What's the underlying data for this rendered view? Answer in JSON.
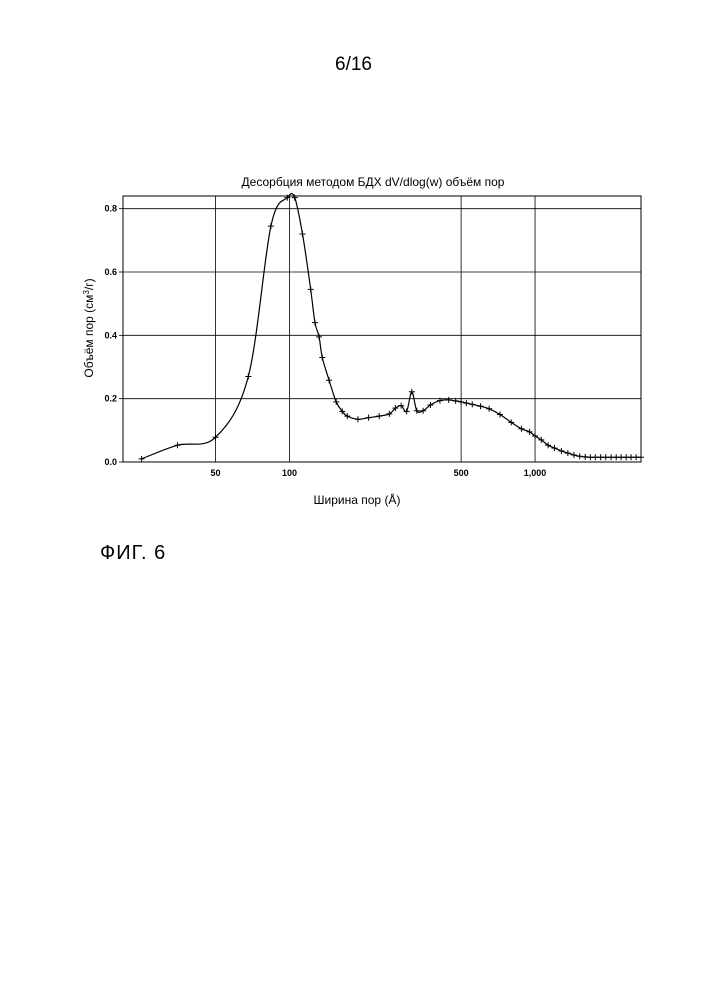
{
  "page": {
    "number": "6/16"
  },
  "figure": {
    "caption": "ФИГ. 6"
  },
  "chart_data": {
    "type": "line",
    "title": "Десорбция методом БДХ dV/dlog(w) объём пор",
    "xlabel": "Ширина пор (Å)",
    "ylabel_main": "Объём пор (см",
    "ylabel_sup": "3",
    "ylabel_end": "/г)",
    "x_scale": "log",
    "xlim": [
      21,
      2700
    ],
    "ylim": [
      0,
      0.84
    ],
    "grid": true,
    "x_ticks": [
      {
        "value": 50,
        "label": "50"
      },
      {
        "value": 100,
        "label": "100"
      },
      {
        "value": 500,
        "label": "500"
      },
      {
        "value": 1000,
        "label": "1,000"
      }
    ],
    "y_ticks": [
      {
        "value": 0.0,
        "label": "0.0"
      },
      {
        "value": 0.2,
        "label": "0.2"
      },
      {
        "value": 0.4,
        "label": "0.4"
      },
      {
        "value": 0.6,
        "label": "0.6"
      },
      {
        "value": 0.8,
        "label": "0.8"
      }
    ],
    "series": [
      {
        "marker": "plus",
        "x": [
          25,
          35,
          50,
          68,
          84,
          98,
          105,
          113,
          122,
          127,
          132,
          136,
          145,
          155,
          164,
          172,
          190,
          210,
          232,
          255,
          270,
          285,
          300,
          315,
          330,
          350,
          375,
          410,
          445,
          475,
          500,
          525,
          555,
          600,
          650,
          720,
          800,
          880,
          950,
          1000,
          1060,
          1130,
          1200,
          1280,
          1360,
          1440,
          1520,
          1600,
          1680,
          1760,
          1850,
          1940,
          2040,
          2140,
          2240,
          2350,
          2460,
          2580,
          2700
        ],
        "y": [
          0.01,
          0.053,
          0.078,
          0.27,
          0.745,
          0.835,
          0.835,
          0.72,
          0.545,
          0.44,
          0.395,
          0.33,
          0.258,
          0.19,
          0.16,
          0.145,
          0.135,
          0.14,
          0.145,
          0.152,
          0.17,
          0.178,
          0.16,
          0.222,
          0.162,
          0.162,
          0.18,
          0.194,
          0.196,
          0.193,
          0.19,
          0.186,
          0.182,
          0.176,
          0.168,
          0.15,
          0.125,
          0.105,
          0.095,
          0.082,
          0.07,
          0.053,
          0.044,
          0.035,
          0.028,
          0.022,
          0.018,
          0.016,
          0.015,
          0.015,
          0.015,
          0.015,
          0.015,
          0.015,
          0.015,
          0.015,
          0.015,
          0.015,
          0.015
        ]
      }
    ]
  }
}
